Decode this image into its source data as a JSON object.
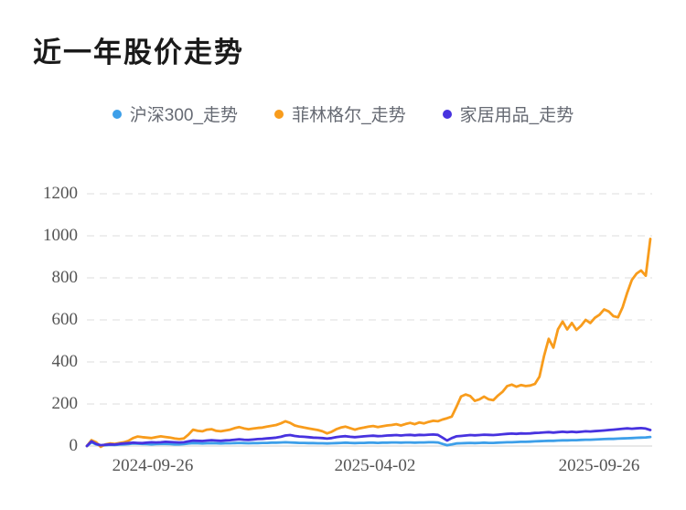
{
  "page": {
    "background": "#ffffff"
  },
  "chart_data": {
    "type": "line",
    "title": "近一年股价走势",
    "legend_position": "top-center",
    "grid": "horizontal-dashed",
    "ylim": [
      0,
      1200
    ],
    "yticks": [
      0,
      200,
      400,
      600,
      800,
      1000,
      1200
    ],
    "xticks": [
      "2024-09-26",
      "2025-04-02",
      "2025-09-26"
    ],
    "x_range": [
      "2024-09-26",
      "2025-09-26"
    ],
    "axis_label_color": "#545454",
    "gridline_color": "#e9e9e9",
    "axis_line_color": "#e0e0e0",
    "series": [
      {
        "id": "hs300",
        "name": "沪深300_走势",
        "color": "#3d9fe9",
        "values": [
          0,
          18,
          8,
          2,
          4,
          6,
          5,
          7,
          8,
          9,
          12,
          11,
          10,
          9,
          8,
          9,
          10,
          10,
          9,
          8,
          8,
          9,
          12,
          14,
          13,
          12,
          13,
          14,
          13,
          12,
          13,
          13,
          14,
          15,
          14,
          13,
          14,
          14,
          15,
          15,
          16,
          16,
          17,
          18,
          17,
          16,
          15,
          15,
          14,
          14,
          13,
          13,
          12,
          13,
          14,
          15,
          16,
          15,
          14,
          15,
          15,
          16,
          16,
          15,
          16,
          16,
          17,
          17,
          16,
          17,
          17,
          16,
          17,
          17,
          18,
          18,
          17,
          10,
          4,
          8,
          12,
          13,
          14,
          15,
          14,
          15,
          16,
          15,
          15,
          16,
          17,
          18,
          18,
          19,
          20,
          20,
          21,
          22,
          23,
          24,
          25,
          25,
          26,
          27,
          27,
          28,
          28,
          29,
          30,
          30,
          31,
          32,
          33,
          34,
          34,
          35,
          36,
          37,
          38,
          39,
          40,
          41,
          43
        ]
      },
      {
        "id": "filinger",
        "name": "菲林格尔_走势",
        "color": "#f89c1c",
        "values": [
          0,
          28,
          18,
          -4,
          8,
          12,
          10,
          14,
          18,
          25,
          38,
          45,
          42,
          40,
          38,
          42,
          46,
          43,
          40,
          36,
          33,
          36,
          55,
          78,
          72,
          70,
          78,
          80,
          72,
          70,
          74,
          78,
          85,
          90,
          84,
          80,
          83,
          86,
          88,
          92,
          96,
          100,
          108,
          118,
          110,
          98,
          92,
          88,
          84,
          80,
          76,
          70,
          60,
          68,
          80,
          88,
          92,
          85,
          78,
          84,
          88,
          92,
          95,
          90,
          94,
          98,
          100,
          104,
          98,
          105,
          110,
          104,
          112,
          108,
          115,
          120,
          118,
          126,
          132,
          140,
          185,
          235,
          245,
          238,
          215,
          222,
          235,
          222,
          218,
          240,
          258,
          285,
          292,
          282,
          290,
          285,
          288,
          295,
          330,
          430,
          510,
          468,
          555,
          592,
          555,
          585,
          552,
          572,
          600,
          585,
          610,
          625,
          650,
          640,
          618,
          612,
          660,
          730,
          790,
          820,
          835,
          810,
          985
        ]
      },
      {
        "id": "home-goods",
        "name": "家居用品_走势",
        "color": "#4732df",
        "values": [
          0,
          22,
          10,
          4,
          6,
          8,
          7,
          10,
          12,
          14,
          16,
          15,
          14,
          16,
          18,
          17,
          18,
          20,
          19,
          18,
          17,
          18,
          22,
          26,
          25,
          24,
          26,
          28,
          26,
          25,
          27,
          28,
          30,
          32,
          30,
          29,
          31,
          33,
          34,
          36,
          38,
          40,
          44,
          50,
          52,
          48,
          45,
          44,
          42,
          40,
          39,
          38,
          35,
          38,
          42,
          45,
          47,
          44,
          42,
          44,
          46,
          48,
          49,
          47,
          48,
          50,
          51,
          52,
          50,
          52,
          53,
          51,
          53,
          52,
          54,
          55,
          53,
          40,
          26,
          38,
          46,
          48,
          50,
          52,
          51,
          52,
          54,
          53,
          52,
          54,
          56,
          58,
          59,
          58,
          60,
          59,
          60,
          62,
          63,
          65,
          66,
          64,
          66,
          68,
          66,
          68,
          66,
          68,
          70,
          69,
          71,
          72,
          74,
          76,
          78,
          80,
          82,
          84,
          82,
          84,
          85,
          83,
          76
        ]
      }
    ]
  }
}
